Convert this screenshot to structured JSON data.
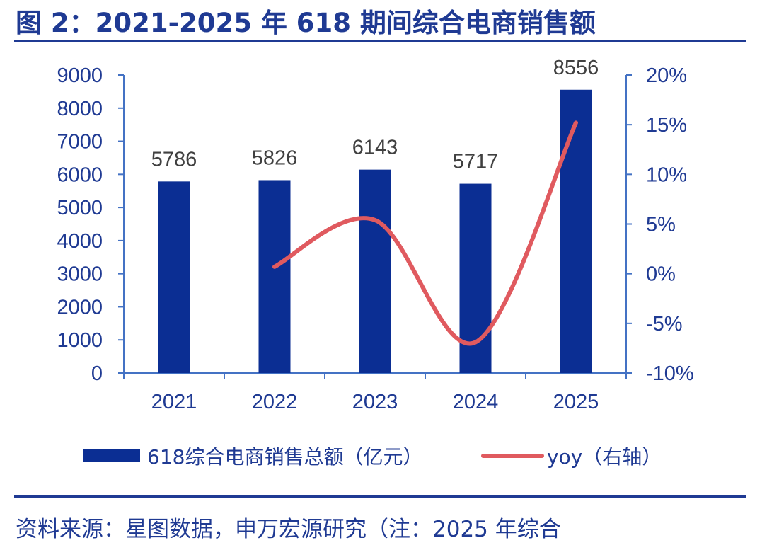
{
  "title": "图 2：2021-2025 年 618 期间综合电商销售额",
  "source": "资料来源：星图数据，申万宏源研究（注：2025 年综合",
  "colors": {
    "bar": "#0B2E93",
    "line": "#E05A5F",
    "axis": "#4472C4",
    "text": "#1F3A93"
  },
  "chart_data": {
    "type": "bar",
    "categories": [
      "2021",
      "2022",
      "2023",
      "2024",
      "2025"
    ],
    "series": [
      {
        "name": "618综合电商销售总额（亿元）",
        "type": "bar",
        "axis": "left",
        "values": [
          5786,
          5826,
          6143,
          5717,
          8556
        ]
      },
      {
        "name": "yoy（右轴）",
        "type": "line",
        "axis": "right",
        "values": [
          null,
          0.7,
          5.4,
          -6.9,
          15.2
        ]
      }
    ],
    "data_labels": [
      "5786",
      "5826",
      "6143",
      "5717",
      "8556"
    ],
    "ylim_left": [
      0,
      9000
    ],
    "yticks_left": [
      "0",
      "1000",
      "2000",
      "3000",
      "4000",
      "5000",
      "6000",
      "7000",
      "8000",
      "9000"
    ],
    "ylim_right": [
      -10,
      20
    ],
    "yticks_right": [
      "-10%",
      "-5%",
      "0%",
      "5%",
      "10%",
      "15%",
      "20%"
    ],
    "grid": false,
    "legend_position": "bottom"
  }
}
